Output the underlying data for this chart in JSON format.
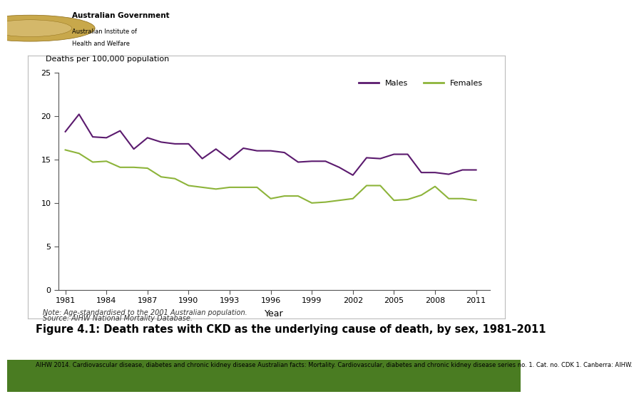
{
  "years": [
    1981,
    1982,
    1983,
    1984,
    1985,
    1986,
    1987,
    1988,
    1989,
    1990,
    1991,
    1992,
    1993,
    1994,
    1995,
    1996,
    1997,
    1998,
    1999,
    2000,
    2001,
    2002,
    2003,
    2004,
    2005,
    2006,
    2007,
    2008,
    2009,
    2010,
    2011
  ],
  "males": [
    18.2,
    20.2,
    17.6,
    17.5,
    18.3,
    16.2,
    17.5,
    17.0,
    16.8,
    16.8,
    15.1,
    16.2,
    15.0,
    16.3,
    16.0,
    16.0,
    15.8,
    14.7,
    14.8,
    14.8,
    14.1,
    13.2,
    15.2,
    15.1,
    15.6,
    15.6,
    13.5,
    13.5,
    13.3,
    13.8,
    13.8
  ],
  "females": [
    16.1,
    15.7,
    14.7,
    14.8,
    14.1,
    14.1,
    14.0,
    13.0,
    12.8,
    12.0,
    11.8,
    11.6,
    11.8,
    11.8,
    11.8,
    10.5,
    10.8,
    10.8,
    10.0,
    10.1,
    10.3,
    10.5,
    12.0,
    12.0,
    10.3,
    10.4,
    10.9,
    11.9,
    10.5,
    10.5,
    10.3
  ],
  "male_color": "#5b1a6e",
  "female_color": "#8db43a",
  "ylabel": "Deaths per 100,000 population",
  "xlabel": "Year",
  "ylim": [
    0,
    25
  ],
  "yticks": [
    0,
    5,
    10,
    15,
    20,
    25
  ],
  "xticks": [
    1981,
    1984,
    1987,
    1990,
    1993,
    1996,
    1999,
    2002,
    2005,
    2008,
    2011
  ],
  "figure_title": "Figure 4.1: Death rates with CKD as the underlying cause of death, by sex, 1981–2011",
  "note_line1": "Note: Age-standardised to the 2001 Australian population.",
  "note_line2": "Source: AIHW National Mortality Database.",
  "caption": "AIHW 2014. Cardiovascular disease, diabetes and chronic kidney disease Australian facts: Mortality. Cardiovascular, diabetes and chronic kidney disease series no. 1. Cat. no. CDK 1. Canberra: AIHW.",
  "bg_chart": "#ffffff",
  "bg_outer": "#ffffff",
  "green_bar_color": "#4a7c22",
  "line_width": 1.5,
  "logo_text1": "Australian Government",
  "logo_text2": "Australian Institute of",
  "logo_text3": "Health and Welfare"
}
